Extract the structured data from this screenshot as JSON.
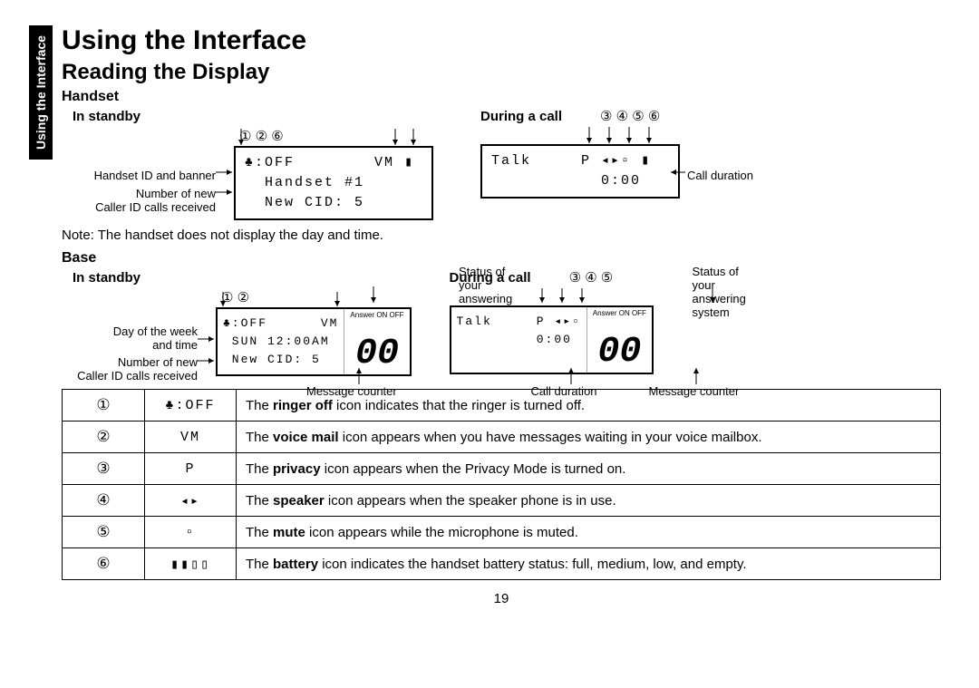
{
  "sideTab": "Using the Interface",
  "title": "Using the Interface",
  "subtitle": "Reading the Display",
  "handset": {
    "label": "Handset",
    "standby": {
      "label": "In standby",
      "markers": "①                  ②  ⑥",
      "lcd": {
        "line1": "♣:OFF        VM ▮",
        "line2": "  Handset #1",
        "line3": "  New CID: 5"
      },
      "callouts": {
        "a": "Handset ID and banner",
        "b": "Number of new\nCaller ID calls received"
      }
    },
    "call": {
      "label": "During a call",
      "markers": "③ ④ ⑤ ⑥",
      "lcd": {
        "line1": "Talk     P ◂▸▫ ▮",
        "line2": "           0:00"
      },
      "callout": "Call duration"
    },
    "note": "Note: The handset does not display the day and time."
  },
  "base": {
    "label": "Base",
    "standby": {
      "label": "In standby",
      "markers": "①                ②",
      "lcd": {
        "line1": "♣:OFF      VM",
        "line2": " SUN 12:00AM",
        "line3": " New CID: 5"
      },
      "ansLabel": "Answer ON OFF",
      "big": "00",
      "statusLabel": "Status of your\nanswering system",
      "callouts": {
        "a": "Day of the week\nand time",
        "b": "Number of new\nCaller ID calls received",
        "c": "Message counter"
      }
    },
    "call": {
      "label": "During a call",
      "markers": "③ ④ ⑤",
      "lcd": {
        "line1": "Talk     P ◂▸▫",
        "line2": "         0:00"
      },
      "ansLabel": "Answer ON OFF",
      "big": "00",
      "statusLabel": "Status of your\nanswering system",
      "callouts": {
        "a": "Call duration",
        "b": "Message counter"
      }
    }
  },
  "legend": [
    {
      "n": "①",
      "icon": "♣:OFF",
      "textPre": "The ",
      "bold": "ringer off",
      "textPost": " icon indicates that the ringer is turned off."
    },
    {
      "n": "②",
      "icon": "VM",
      "textPre": "The ",
      "bold": "voice mail",
      "textPost": " icon appears when you have messages waiting in your voice mailbox."
    },
    {
      "n": "③",
      "icon": "P",
      "textPre": "The ",
      "bold": "privacy",
      "textPost": " icon appears when the Privacy Mode is turned on."
    },
    {
      "n": "④",
      "icon": "◂▸",
      "textPre": "The ",
      "bold": "speaker",
      "textPost": " icon appears when the speaker phone is in use."
    },
    {
      "n": "⑤",
      "icon": "▫",
      "textPre": "The ",
      "bold": "mute",
      "textPost": " icon appears while the microphone is muted."
    },
    {
      "n": "⑥",
      "icon": "▮▮▯▯",
      "textPre": "The ",
      "bold": "battery",
      "textPost": " icon indicates the handset battery status: full, medium, low, and empty."
    }
  ],
  "pageNumber": "19"
}
